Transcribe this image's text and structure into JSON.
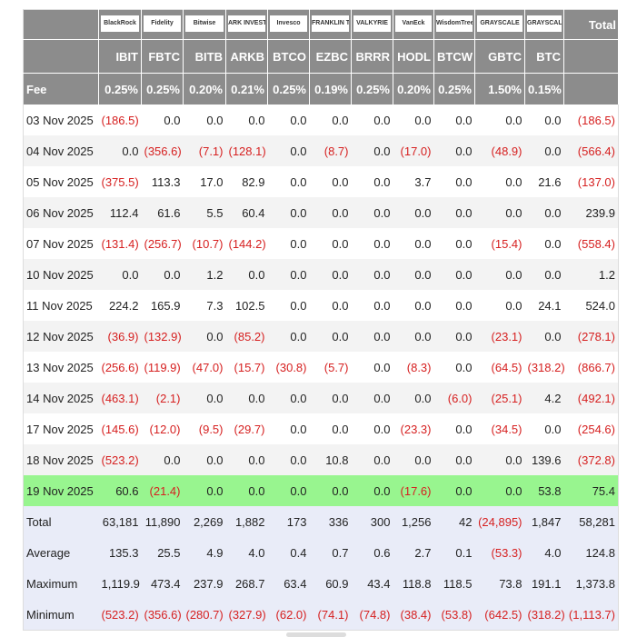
{
  "table": {
    "logos": [
      "BlackRock",
      "Fidelity",
      "Bitwise",
      "ARK INVEST",
      "Invesco",
      "FRANKLIN TEMPLETON",
      "VALKYRIE",
      "VanEck",
      "WisdomTree",
      "GRAYSCALE",
      "GRAYSCALE"
    ],
    "total_header": "Total",
    "tickers": [
      "IBIT",
      "FBTC",
      "BITB",
      "ARKB",
      "BTCO",
      "EZBC",
      "BRRR",
      "HODL",
      "BTCW",
      "GBTC",
      "BTC"
    ],
    "fee_label": "Fee",
    "fees": [
      "0.25%",
      "0.25%",
      "0.20%",
      "0.21%",
      "0.25%",
      "0.19%",
      "0.25%",
      "0.20%",
      "0.25%",
      "1.50%",
      "0.15%"
    ],
    "rows": [
      [
        "03 Nov 2025",
        "(186.5)",
        "0.0",
        "0.0",
        "0.0",
        "0.0",
        "0.0",
        "0.0",
        "0.0",
        "0.0",
        "0.0",
        "0.0",
        "(186.5)"
      ],
      [
        "04 Nov 2025",
        "0.0",
        "(356.6)",
        "(7.1)",
        "(128.1)",
        "0.0",
        "(8.7)",
        "0.0",
        "(17.0)",
        "0.0",
        "(48.9)",
        "0.0",
        "(566.4)"
      ],
      [
        "05 Nov 2025",
        "(375.5)",
        "113.3",
        "17.0",
        "82.9",
        "0.0",
        "0.0",
        "0.0",
        "3.7",
        "0.0",
        "0.0",
        "21.6",
        "(137.0)"
      ],
      [
        "06 Nov 2025",
        "112.4",
        "61.6",
        "5.5",
        "60.4",
        "0.0",
        "0.0",
        "0.0",
        "0.0",
        "0.0",
        "0.0",
        "0.0",
        "239.9"
      ],
      [
        "07 Nov 2025",
        "(131.4)",
        "(256.7)",
        "(10.7)",
        "(144.2)",
        "0.0",
        "0.0",
        "0.0",
        "0.0",
        "0.0",
        "(15.4)",
        "0.0",
        "(558.4)"
      ],
      [
        "10 Nov 2025",
        "0.0",
        "0.0",
        "1.2",
        "0.0",
        "0.0",
        "0.0",
        "0.0",
        "0.0",
        "0.0",
        "0.0",
        "0.0",
        "1.2"
      ],
      [
        "11 Nov 2025",
        "224.2",
        "165.9",
        "7.3",
        "102.5",
        "0.0",
        "0.0",
        "0.0",
        "0.0",
        "0.0",
        "0.0",
        "24.1",
        "524.0"
      ],
      [
        "12 Nov 2025",
        "(36.9)",
        "(132.9)",
        "0.0",
        "(85.2)",
        "0.0",
        "0.0",
        "0.0",
        "0.0",
        "0.0",
        "(23.1)",
        "0.0",
        "(278.1)"
      ],
      [
        "13 Nov 2025",
        "(256.6)",
        "(119.9)",
        "(47.0)",
        "(15.7)",
        "(30.8)",
        "(5.7)",
        "0.0",
        "(8.3)",
        "0.0",
        "(64.5)",
        "(318.2)",
        "(866.7)"
      ],
      [
        "14 Nov 2025",
        "(463.1)",
        "(2.1)",
        "0.0",
        "0.0",
        "0.0",
        "0.0",
        "0.0",
        "0.0",
        "(6.0)",
        "(25.1)",
        "4.2",
        "(492.1)"
      ],
      [
        "17 Nov 2025",
        "(145.6)",
        "(12.0)",
        "(9.5)",
        "(29.7)",
        "0.0",
        "0.0",
        "0.0",
        "(23.3)",
        "0.0",
        "(34.5)",
        "0.0",
        "(254.6)"
      ],
      [
        "18 Nov 2025",
        "(523.2)",
        "0.0",
        "0.0",
        "0.0",
        "0.0",
        "10.8",
        "0.0",
        "0.0",
        "0.0",
        "0.0",
        "139.6",
        "(372.8)"
      ],
      [
        "19 Nov 2025",
        "60.6",
        "(21.4)",
        "0.0",
        "0.0",
        "0.0",
        "0.0",
        "0.0",
        "(17.6)",
        "0.0",
        "0.0",
        "53.8",
        "75.4"
      ]
    ],
    "summary": [
      [
        "Total",
        "63,181",
        "11,890",
        "2,269",
        "1,882",
        "173",
        "336",
        "300",
        "1,256",
        "42",
        "(24,895)",
        "1,847",
        "58,281"
      ],
      [
        "Average",
        "135.3",
        "25.5",
        "4.9",
        "4.0",
        "0.4",
        "0.7",
        "0.6",
        "2.7",
        "0.1",
        "(53.3)",
        "4.0",
        "124.8"
      ],
      [
        "Maximum",
        "1,119.9",
        "473.4",
        "237.9",
        "268.7",
        "63.4",
        "60.9",
        "43.4",
        "118.8",
        "118.5",
        "73.8",
        "191.1",
        "1,373.8"
      ],
      [
        "Minimum",
        "(523.2)",
        "(356.6)",
        "(280.7)",
        "(327.9)",
        "(62.0)",
        "(74.1)",
        "(74.8)",
        "(38.4)",
        "(53.8)",
        "(642.5)",
        "(318.2)",
        "(1,113.7)"
      ]
    ]
  }
}
